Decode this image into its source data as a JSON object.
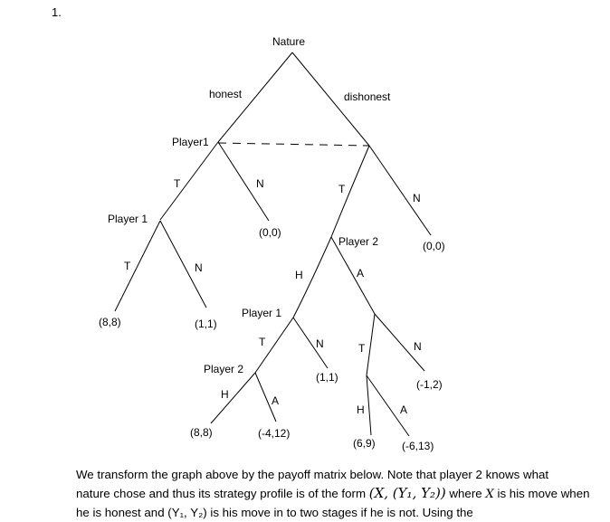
{
  "question_number": "1.",
  "tree": {
    "root_label": "Nature",
    "edge_honest": "honest",
    "edge_dishonest": "dishonest",
    "player1_top": "Player1",
    "player1_left": "Player 1",
    "player2_right": "Player 2",
    "player1_mid": "Player 1",
    "player2_low": "Player 2",
    "labels": {
      "t1": "T",
      "n1": "N",
      "t2": "T",
      "n2": "N",
      "t3": "T",
      "n3": "N",
      "h1": "H",
      "a1": "A",
      "t4": "T",
      "n4": "N",
      "h2": "H",
      "a2": "A",
      "t5": "T",
      "n5": "N",
      "h3": "H",
      "a3": "A"
    },
    "payoffs": {
      "p_left_n": "(0,0)",
      "p_ll_t": "(8,8)",
      "p_ll_n": "(1,1)",
      "p_right_n": "(0,0)",
      "p_mid_n": "(1,1)",
      "p_low_h": "(8,8)",
      "p_low_a": "(-4,12)",
      "p_ra_n": "(-1,2)",
      "p_ra_h": "(6,9)",
      "p_ra_a": "(-6,13)"
    }
  },
  "paragraph": {
    "line1": "We transform the graph above by the payoff matrix below. Note that player 2 knows what",
    "line2_a": "nature chose and thus its strategy profile is of the form ",
    "line2_math": "(X, (Y₁, Y₂))",
    "line2_b": " where ",
    "line2_x": "X",
    "line2_c": " is his move when",
    "line3": "he is honest and (Y₁, Y₂) is his move in to two stages if he is not. Using the"
  }
}
